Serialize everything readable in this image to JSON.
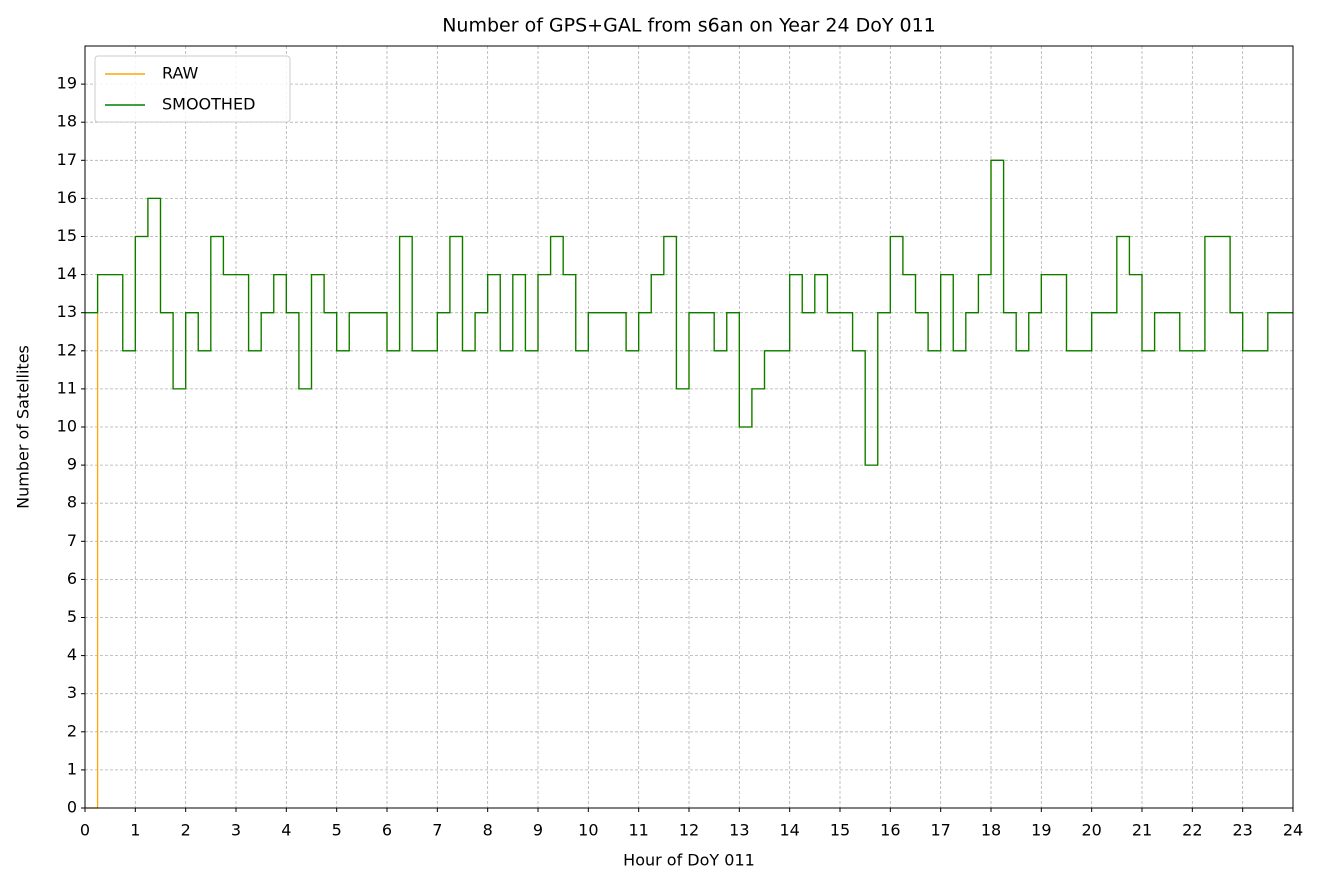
{
  "chart_data": {
    "type": "line",
    "step": true,
    "title": "Number of GPS+GAL from s6an on Year 24 DoY 011",
    "xlabel": "Hour of DoY 011",
    "ylabel": "Number of Satellites",
    "x": [
      0,
      0.25,
      0.5,
      0.75,
      1,
      1.25,
      1.5,
      1.75,
      2,
      2.25,
      2.5,
      2.75,
      3,
      3.25,
      3.5,
      3.75,
      4,
      4.25,
      4.5,
      4.75,
      5,
      5.25,
      5.5,
      5.75,
      6,
      6.25,
      6.5,
      6.75,
      7,
      7.25,
      7.5,
      7.75,
      8,
      8.25,
      8.5,
      8.75,
      9,
      9.25,
      9.5,
      9.75,
      10,
      10.25,
      10.5,
      10.75,
      11,
      11.25,
      11.5,
      11.75,
      12,
      12.25,
      12.5,
      12.75,
      13,
      13.25,
      13.5,
      13.75,
      14,
      14.25,
      14.5,
      14.75,
      15,
      15.25,
      15.5,
      15.75,
      16,
      16.25,
      16.5,
      16.75,
      17,
      17.25,
      17.5,
      17.75,
      18,
      18.25,
      18.5,
      18.75,
      19,
      19.25,
      19.5,
      19.75,
      20,
      20.25,
      20.5,
      20.75,
      21,
      21.25,
      21.5,
      21.75,
      22,
      22.25,
      22.5,
      22.75,
      23,
      23.25,
      23.5,
      23.75,
      24
    ],
    "series": [
      {
        "name": "RAW",
        "color": "#ffa500",
        "values": [
          0,
          14,
          14,
          12,
          15,
          16,
          13,
          11,
          13,
          12,
          15,
          14,
          14,
          12,
          13,
          14,
          13,
          11,
          14,
          13,
          12,
          13,
          13,
          13,
          12,
          15,
          12,
          12,
          13,
          15,
          12,
          13,
          14,
          12,
          14,
          12,
          14,
          15,
          14,
          12,
          13,
          13,
          13,
          12,
          13,
          14,
          15,
          11,
          13,
          13,
          12,
          13,
          10,
          11,
          12,
          12,
          14,
          13,
          14,
          13,
          13,
          12,
          9,
          13,
          15,
          14,
          13,
          12,
          14,
          12,
          13,
          14,
          17,
          13,
          12,
          13,
          14,
          14,
          12,
          12,
          13,
          13,
          15,
          14,
          12,
          13,
          13,
          12,
          12,
          15,
          15,
          13,
          12,
          12,
          13,
          13,
          13
        ]
      },
      {
        "name": "SMOOTHED",
        "color": "#008000",
        "values": [
          13,
          14,
          14,
          12,
          15,
          16,
          13,
          11,
          13,
          12,
          15,
          14,
          14,
          12,
          13,
          14,
          13,
          11,
          14,
          13,
          12,
          13,
          13,
          13,
          12,
          15,
          12,
          12,
          13,
          15,
          12,
          13,
          14,
          12,
          14,
          12,
          14,
          15,
          14,
          12,
          13,
          13,
          13,
          12,
          13,
          14,
          15,
          11,
          13,
          13,
          12,
          13,
          10,
          11,
          12,
          12,
          14,
          13,
          14,
          13,
          13,
          12,
          9,
          13,
          15,
          14,
          13,
          12,
          14,
          12,
          13,
          14,
          17,
          13,
          12,
          13,
          14,
          14,
          12,
          12,
          13,
          13,
          15,
          14,
          12,
          13,
          13,
          12,
          12,
          15,
          15,
          13,
          12,
          12,
          13,
          13,
          13
        ]
      }
    ],
    "xlim": [
      0,
      24
    ],
    "xticks": [
      0,
      1,
      2,
      3,
      4,
      5,
      6,
      7,
      8,
      9,
      10,
      11,
      12,
      13,
      14,
      15,
      16,
      17,
      18,
      19,
      20,
      21,
      22,
      23,
      24
    ],
    "ylim": [
      0,
      20
    ],
    "yticks": [
      0,
      1,
      2,
      3,
      4,
      5,
      6,
      7,
      8,
      9,
      10,
      11,
      12,
      13,
      14,
      15,
      16,
      17,
      18,
      19
    ],
    "grid": true,
    "legend": "upper left"
  }
}
